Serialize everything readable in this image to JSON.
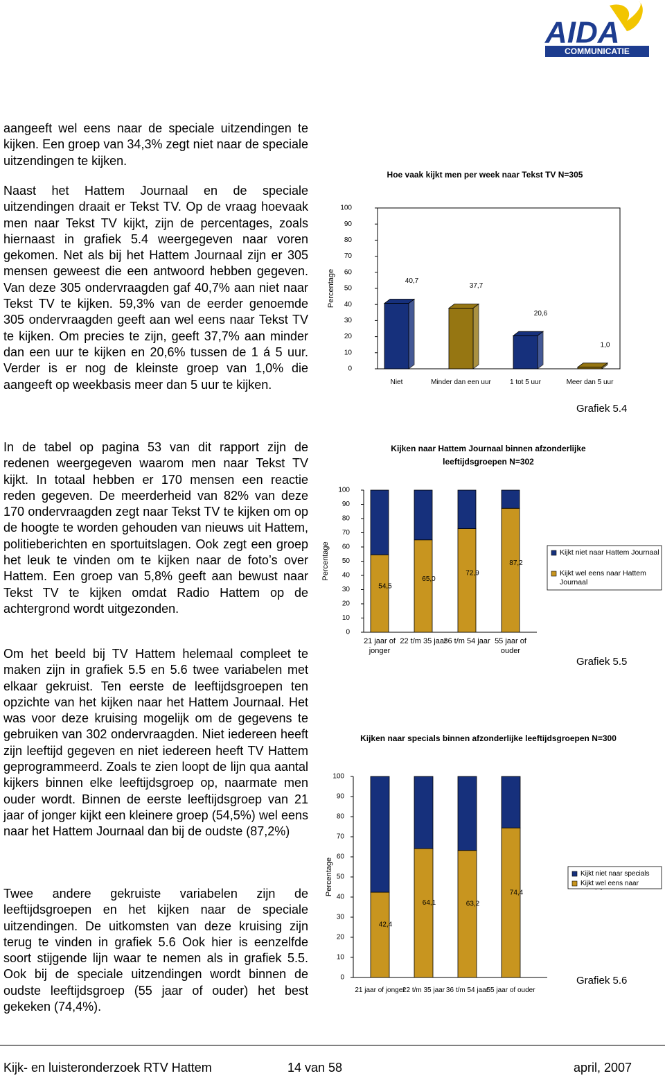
{
  "logo": {
    "name": "AIDA",
    "subtitle": "COMMUNICATIE"
  },
  "paragraphs": [
    "aangeeft wel eens naar de speciale uitzendingen te kijken. Een groep van 34,3% zegt niet naar de speciale uitzendingen te kijken.",
    "Naast het Hattem Journaal en de speciale uitzendingen draait er Tekst TV. Op de vraag hoevaak men naar Tekst TV kijkt, zijn de percentages, zoals hiernaast in grafiek 5.4 weergegeven naar voren gekomen. Net als bij het Hattem Journaal zijn er 305 mensen geweest die een antwoord hebben gegeven. Van deze 305 ondervraagden gaf 40,7% aan niet naar Tekst TV te kijken. 59,3% van de eerder genoemde 305 ondervraagden geeft aan wel eens naar Tekst TV te kijken. Om precies te zijn, geeft 37,7% aan minder dan een uur te kijken en 20,6% tussen de 1 á 5 uur. Verder is er nog de kleinste groep van 1,0% die aangeeft op weekbasis meer dan 5 uur te kijken.",
    "In de tabel op pagina 53 van dit rapport zijn de redenen weergegeven waarom men naar Tekst TV kijkt. In totaal hebben er 170 mensen een reactie reden gegeven. De meerderheid van 82% van deze 170 ondervraagden zegt naar Tekst TV te kijken om op de hoogte te worden gehouden van nieuws uit Hattem, politieberichten en sportuitslagen. Ook zegt een groep het leuk te vinden om te kijken naar de foto’s over Hattem. Een groep van 5,8% geeft aan bewust naar Tekst TV te kijken omdat Radio Hattem op de achtergrond wordt uitgezonden.",
    "Om het beeld bij TV Hattem helemaal compleet te maken zijn in grafiek 5.5 en 5.6 twee variabelen met elkaar gekruist. Ten eerste de leeftijdsgroepen ten opzichte van het kijken naar het Hattem Journaal. Het was voor deze kruising mogelijk om de gegevens te gebruiken van 302 ondervraagden. Niet iedereen heeft zijn leeftijd gegeven en niet iedereen heeft TV Hattem geprogrammeerd. Zoals te zien loopt de lijn qua aantal kijkers binnen elke leeftijdsgroep op, naarmate men ouder wordt. Binnen de eerste leeftijdsgroep van 21 jaar of jonger kijkt een kleinere groep (54,5%) wel eens naar het Hattem Journaal dan bij de oudste (87,2%)",
    "Twee andere gekruiste variabelen zijn de leeftijdsgroepen en het kijken naar de speciale uitzendingen. De uitkomsten van deze kruising zijn terug te vinden in grafiek 5.6 Ook hier is eenzelfde soort stijgende lijn waar te nemen als in grafiek 5.5. Ook bij de speciale uitzendingen wordt binnen de oudste leeftijdsgroep (55 jaar of ouder) het best gekeken (74,4%)."
  ],
  "chart_data": [
    {
      "type": "bar",
      "title": "Hoe vaak kijkt men per week naar Tekst TV N=305",
      "ylabel": "Percentage",
      "categories": [
        "Niet",
        "Minder dan een uur",
        "1 tot 5 uur",
        "Meer dan 5 uur"
      ],
      "values": [
        40.7,
        37.7,
        20.6,
        1.0
      ],
      "value_labels": [
        "40,7",
        "37,7",
        "20,6",
        "1,0"
      ],
      "colors": [
        "#16307c",
        "#967612",
        "#16307c",
        "#967612"
      ],
      "ylim": [
        0,
        100
      ],
      "yticks": [
        0,
        10,
        20,
        30,
        40,
        50,
        60,
        70,
        80,
        90,
        100
      ],
      "caption": "Grafiek 5.4"
    },
    {
      "type": "stacked_bar",
      "title": "Kijken naar Hattem Journaal binnen afzonderlijke leeftijdsgroepen N=302",
      "ylabel": "Percentage",
      "categories": [
        "21 jaar of jonger",
        "22 t/m 35 jaar",
        "36 t/m 54 jaar",
        "55 jaar of ouder"
      ],
      "series": [
        {
          "name": "Kijkt wel eens naar Hattem Journaal",
          "color": "#c8951f",
          "values": [
            54.5,
            65.0,
            72.9,
            87.2
          ],
          "value_labels": [
            "54,5",
            "65,0",
            "72,9",
            "87,2"
          ]
        },
        {
          "name": "Kijkt niet naar Hattem Journaal",
          "color": "#16307c",
          "values": [
            45.5,
            35.0,
            27.1,
            12.8
          ]
        }
      ],
      "ylim": [
        0,
        100
      ],
      "yticks": [
        0,
        10,
        20,
        30,
        40,
        50,
        60,
        70,
        80,
        90,
        100
      ],
      "legend": "right",
      "caption": "Grafiek 5.5"
    },
    {
      "type": "stacked_bar",
      "title": "Kijken naar specials binnen afzonderlijke leeftijdsgroepen N=300",
      "ylabel": "Percentage",
      "categories": [
        "21 jaar of jonger",
        "22 t/m 35 jaar",
        "36 t/m 54 jaar",
        "55 jaar of ouder"
      ],
      "series": [
        {
          "name": "Kijkt wel eens naar specials",
          "color": "#c8951f",
          "values": [
            42.4,
            64.1,
            63.2,
            74.4
          ],
          "value_labels": [
            "42,4",
            "64,1",
            "63,2",
            "74,4"
          ]
        },
        {
          "name": "Kijkt niet naar specials",
          "color": "#16307c",
          "values": [
            57.6,
            35.9,
            36.8,
            25.6
          ]
        }
      ],
      "ylim": [
        0,
        100
      ],
      "yticks": [
        0,
        10,
        20,
        30,
        40,
        50,
        60,
        70,
        80,
        90,
        100
      ],
      "legend": "right",
      "caption": "Grafiek 5.6"
    }
  ],
  "footer": {
    "left": "Kijk- en luisteronderzoek RTV Hattem",
    "center": "14 van 58",
    "right": "april, 2007"
  }
}
